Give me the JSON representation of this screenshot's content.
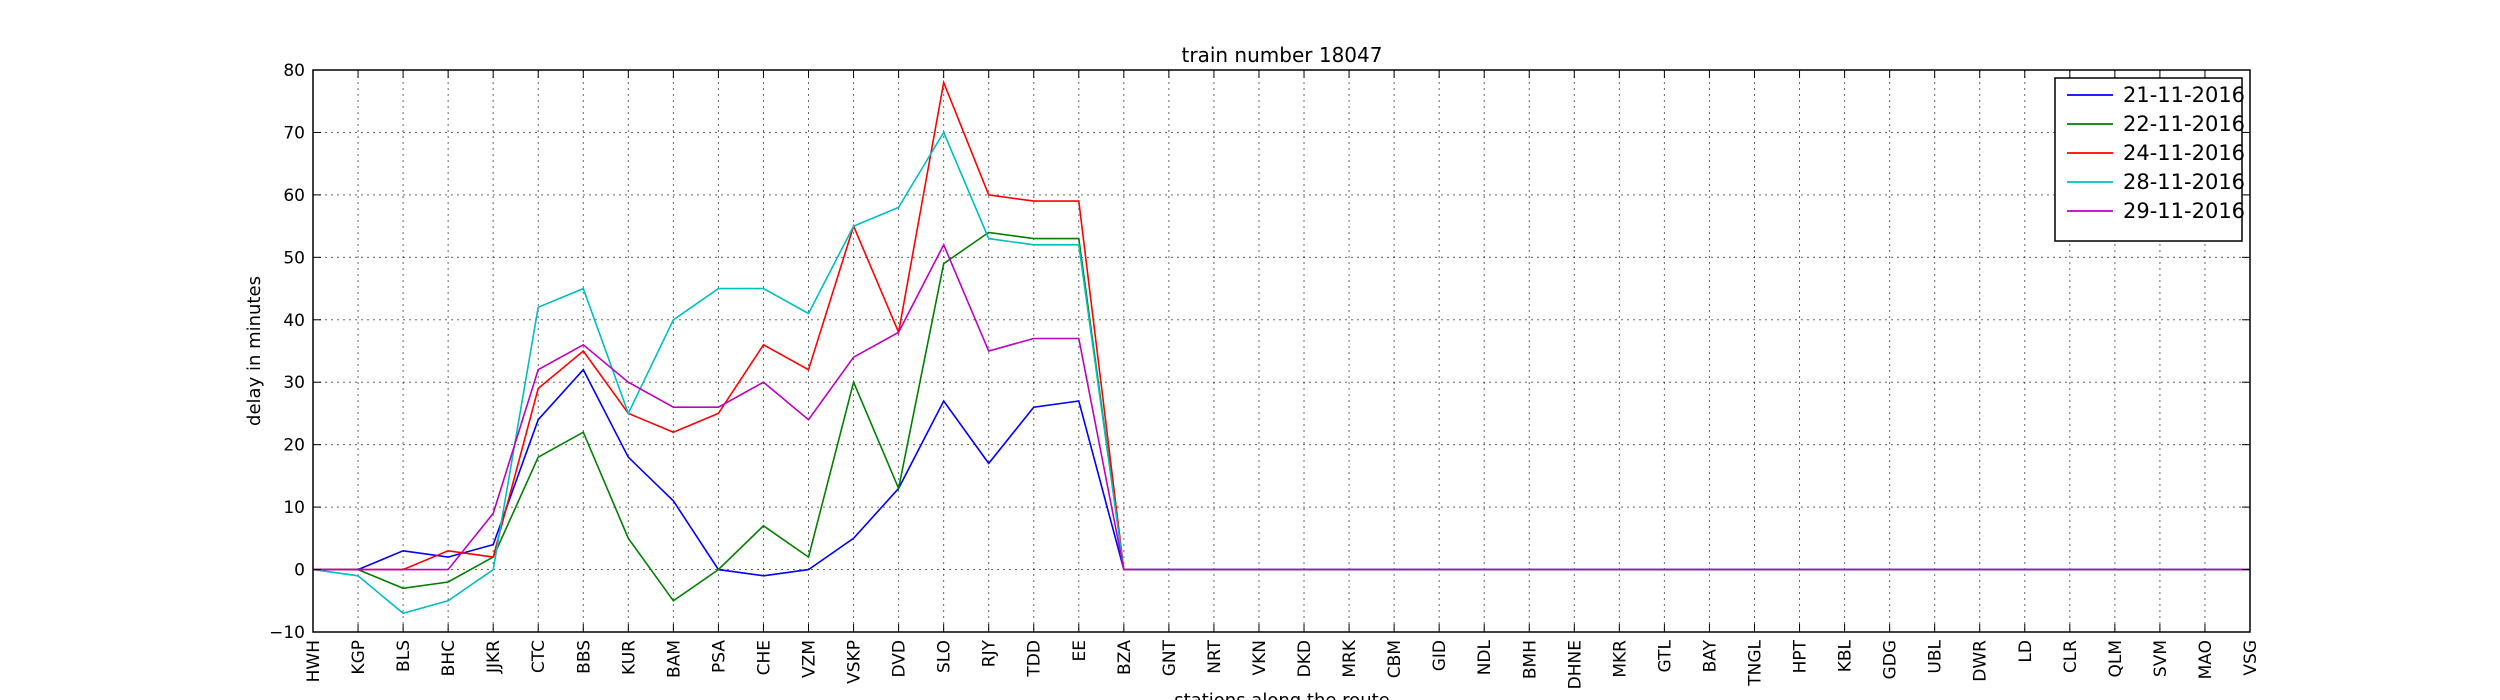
{
  "chart_data": {
    "type": "line",
    "title": "train number 18047",
    "xlabel": "stations along the route",
    "ylabel": "delay in minutes",
    "categories": [
      "HWH",
      "KGP",
      "BLS",
      "BHC",
      "JJKR",
      "CTC",
      "BBS",
      "KUR",
      "BAM",
      "PSA",
      "CHE",
      "VZM",
      "VSKP",
      "DVD",
      "SLO",
      "RJY",
      "TDD",
      "EE",
      "BZA",
      "GNT",
      "NRT",
      "VKN",
      "DKD",
      "MRK",
      "CBM",
      "GID",
      "NDL",
      "BMH",
      "DHNE",
      "MKR",
      "GTL",
      "BAY",
      "TNGL",
      "HPT",
      "KBL",
      "GDG",
      "UBL",
      "DWR",
      "LD",
      "CLR",
      "QLM",
      "SVM",
      "MAO",
      "VSG"
    ],
    "ylim": [
      -10,
      80
    ],
    "yticks": [
      -10,
      0,
      10,
      20,
      30,
      40,
      50,
      60,
      70,
      80
    ],
    "grid": true,
    "legend_position": "top-right",
    "series": [
      {
        "name": "21-11-2016",
        "color": "#0000ff",
        "values": [
          0,
          0,
          3,
          2,
          4,
          24,
          32,
          18,
          11,
          0,
          -1,
          0,
          5,
          13,
          27,
          17,
          26,
          27,
          0,
          0,
          0,
          0,
          0,
          0,
          0,
          0,
          0,
          0,
          0,
          0,
          0,
          0,
          0,
          0,
          0,
          0,
          0,
          0,
          0,
          0,
          0,
          0,
          0,
          0
        ]
      },
      {
        "name": "22-11-2016",
        "color": "#008000",
        "values": [
          0,
          0,
          -3,
          -2,
          2,
          18,
          22,
          5,
          -5,
          0,
          7,
          2,
          30,
          13,
          49,
          54,
          53,
          53,
          0,
          0,
          0,
          0,
          0,
          0,
          0,
          0,
          0,
          0,
          0,
          0,
          0,
          0,
          0,
          0,
          0,
          0,
          0,
          0,
          0,
          0,
          0,
          0,
          0,
          0
        ]
      },
      {
        "name": "24-11-2016",
        "color": "#ff0000",
        "values": [
          0,
          0,
          0,
          3,
          2,
          29,
          35,
          25,
          22,
          25,
          36,
          32,
          55,
          38,
          78,
          60,
          59,
          59,
          0,
          0,
          0,
          0,
          0,
          0,
          0,
          0,
          0,
          0,
          0,
          0,
          0,
          0,
          0,
          0,
          0,
          0,
          0,
          0,
          0,
          0,
          0,
          0,
          0,
          0
        ]
      },
      {
        "name": "28-11-2016",
        "color": "#00bfbf",
        "values": [
          0,
          -1,
          -7,
          -5,
          0,
          42,
          45,
          25,
          40,
          45,
          45,
          41,
          55,
          58,
          70,
          53,
          52,
          52,
          0,
          0,
          0,
          0,
          0,
          0,
          0,
          0,
          0,
          0,
          0,
          0,
          0,
          0,
          0,
          0,
          0,
          0,
          0,
          0,
          0,
          0,
          0,
          0,
          0,
          0
        ]
      },
      {
        "name": "29-11-2016",
        "color": "#bf00bf",
        "values": [
          0,
          0,
          0,
          0,
          9,
          32,
          36,
          30,
          26,
          26,
          30,
          24,
          34,
          38,
          52,
          35,
          37,
          37,
          0,
          0,
          0,
          0,
          0,
          0,
          0,
          0,
          0,
          0,
          0,
          0,
          0,
          0,
          0,
          0,
          0,
          0,
          0,
          0,
          0,
          0,
          0,
          0,
          0,
          0
        ]
      }
    ]
  }
}
